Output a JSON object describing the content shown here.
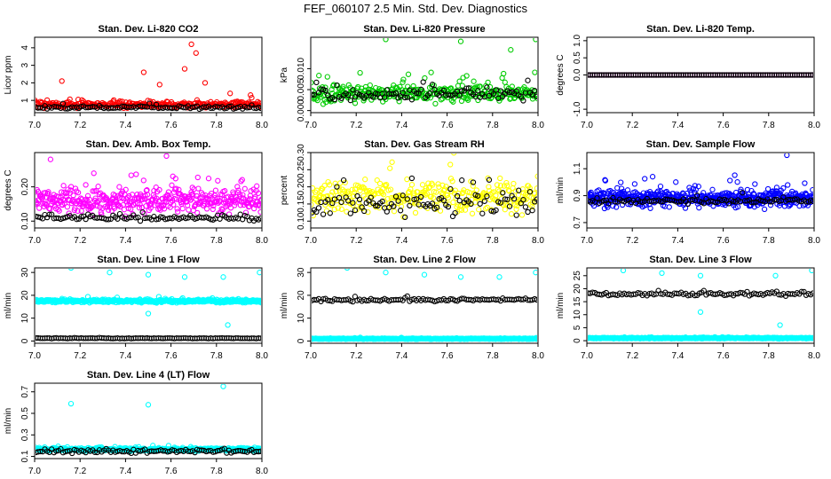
{
  "figure_title": "FEF_060107  2.5 Min. Std. Dev. Diagnostics",
  "colors": {
    "red": "#ff0000",
    "black": "#000000",
    "green": "#00cc00",
    "magenta": "#ff00ff",
    "yellow": "#ffff00",
    "blue": "#0000ff",
    "cyan": "#00ffff"
  },
  "chart_data": [
    {
      "type": "scatter",
      "title": "Stan. Dev. Li-820 CO2",
      "xlabel": "",
      "ylabel": "Licor ppm",
      "xlim": [
        7.0,
        8.0
      ],
      "ylim": [
        0.3,
        4.6
      ],
      "xticks": [
        "7.0",
        "7.2",
        "7.4",
        "7.6",
        "7.8",
        "8.0"
      ],
      "yticks": [
        1,
        2,
        3,
        4
      ],
      "ytick_labels": [
        "1",
        "2",
        "3",
        "4"
      ],
      "series": [
        {
          "name": "primary",
          "color": "#ff0000",
          "n": 300,
          "base": 0.75,
          "spread": 0.25,
          "spikes": [
            [
              7.12,
              2.1
            ],
            [
              7.48,
              2.6
            ],
            [
              7.55,
              1.9
            ],
            [
              7.66,
              2.8
            ],
            [
              7.69,
              4.2
            ],
            [
              7.71,
              3.7
            ],
            [
              7.75,
              2.0
            ],
            [
              7.86,
              1.4
            ],
            [
              7.95,
              1.3
            ]
          ]
        },
        {
          "name": "secondary",
          "color": "#000000",
          "n": 100,
          "base": 0.6,
          "spread": 0.12,
          "spikes": []
        }
      ]
    },
    {
      "type": "scatter",
      "title": "Stan. Dev. Li-820 Pressure",
      "xlabel": "",
      "ylabel": "kPa",
      "xlim": [
        7.0,
        8.0
      ],
      "ylim": [
        -0.0005,
        0.0175
      ],
      "xticks": [
        "7.0",
        "7.2",
        "7.4",
        "7.6",
        "7.8",
        "8.0"
      ],
      "yticks": [
        0.0,
        0.005,
        0.01
      ],
      "ytick_labels": [
        "0.000",
        "0.005",
        "0.010"
      ],
      "series": [
        {
          "name": "primary",
          "color": "#00cc00",
          "n": 320,
          "base": 0.004,
          "spread": 0.003,
          "spikes": [
            [
              7.33,
              0.017
            ],
            [
              7.66,
              0.0165
            ],
            [
              7.88,
              0.0145
            ],
            [
              7.99,
              0.017
            ]
          ]
        },
        {
          "name": "secondary",
          "color": "#000000",
          "n": 100,
          "base": 0.004,
          "spread": 0.002,
          "spikes": []
        }
      ]
    },
    {
      "type": "scatter",
      "title": "Stan. Dev. Li-820 Temp.",
      "xlabel": "",
      "ylabel": "degrees C",
      "xlim": [
        7.0,
        8.0
      ],
      "ylim": [
        -1.1,
        1.1
      ],
      "xticks": [
        "7.0",
        "7.2",
        "7.4",
        "7.6",
        "7.8",
        "8.0"
      ],
      "yticks": [
        -1.0,
        0.0,
        0.5,
        1.0
      ],
      "ytick_labels": [
        "-1.0",
        "0.0",
        "0.5",
        "1.0"
      ],
      "series": [
        {
          "name": "primary",
          "color": "#ff00ff",
          "n": 100,
          "base": 0.0,
          "spread": 0.0,
          "spikes": []
        },
        {
          "name": "secondary",
          "color": "#000000",
          "n": 100,
          "base": 0.0,
          "spread": 0.0,
          "spikes": []
        }
      ]
    },
    {
      "type": "scatter",
      "title": "Stan. Dev. Amb. Box Temp.",
      "xlabel": "",
      "ylabel": "degrees C",
      "xlim": [
        7.0,
        8.0
      ],
      "ylim": [
        0.08,
        0.3
      ],
      "xticks": [
        "7.0",
        "7.2",
        "7.4",
        "7.6",
        "7.8",
        "8.0"
      ],
      "yticks": [
        0.1,
        0.2
      ],
      "ytick_labels": [
        "0.10",
        "0.20"
      ],
      "series": [
        {
          "name": "primary",
          "color": "#ff00ff",
          "n": 420,
          "base": 0.16,
          "spread": 0.05,
          "spikes": [
            [
              7.58,
              0.29
            ],
            [
              7.07,
              0.28
            ]
          ]
        },
        {
          "name": "secondary",
          "color": "#000000",
          "n": 100,
          "base": 0.11,
          "spread": 0.012,
          "spikes": []
        }
      ]
    },
    {
      "type": "scatter",
      "title": "Stan. Dev. Gas Stream RH",
      "xlabel": "",
      "ylabel": "percent",
      "xlim": [
        7.0,
        8.0
      ],
      "ylim": [
        0.08,
        0.3
      ],
      "xticks": [
        "7.0",
        "7.2",
        "7.4",
        "7.6",
        "7.8",
        "8.0"
      ],
      "yticks": [
        0.1,
        0.15,
        0.2,
        0.25,
        0.3
      ],
      "ytick_labels": [
        "0.10",
        "0.15",
        "0.20",
        "0.25",
        "0.30"
      ],
      "series": [
        {
          "name": "primary",
          "color": "#ffff00",
          "n": 320,
          "base": 0.17,
          "spread": 0.07,
          "spikes": []
        },
        {
          "name": "secondary",
          "color": "#000000",
          "n": 100,
          "base": 0.15,
          "spread": 0.05,
          "spikes": []
        }
      ]
    },
    {
      "type": "scatter",
      "title": "Stan. Dev. Sample Flow",
      "xlabel": "",
      "ylabel": "ml/min",
      "xlim": [
        7.0,
        8.0
      ],
      "ylim": [
        0.66,
        1.22
      ],
      "xticks": [
        "7.0",
        "7.2",
        "7.4",
        "7.6",
        "7.8",
        "8.0"
      ],
      "yticks": [
        0.7,
        0.9,
        1.1
      ],
      "ytick_labels": [
        "0.7",
        "0.9",
        "1.1"
      ],
      "series": [
        {
          "name": "primary",
          "color": "#0000ff",
          "n": 520,
          "base": 0.88,
          "spread": 0.09,
          "spikes": [
            [
              7.88,
              1.2
            ]
          ]
        },
        {
          "name": "secondary",
          "color": "#000000",
          "n": 100,
          "base": 0.86,
          "spread": 0.03,
          "spikes": []
        }
      ]
    },
    {
      "type": "scatter",
      "title": "Stan. Dev. Line 1 Flow",
      "xlabel": "",
      "ylabel": "ml/min",
      "xlim": [
        7.0,
        8.0
      ],
      "ylim": [
        -1,
        32
      ],
      "xticks": [
        "7.0",
        "7.2",
        "7.4",
        "7.6",
        "7.8",
        "8.0"
      ],
      "yticks": [
        0,
        10,
        20,
        30
      ],
      "ytick_labels": [
        "0",
        "10",
        "20",
        "30"
      ],
      "series": [
        {
          "name": "primary",
          "color": "#00ffff",
          "n": 420,
          "base": 17.5,
          "spread": 1.0,
          "spikes": [
            [
              7.16,
              32
            ],
            [
              7.33,
              30
            ],
            [
              7.5,
              29
            ],
            [
              7.66,
              28
            ],
            [
              7.83,
              28
            ],
            [
              7.99,
              30
            ],
            [
              7.5,
              12
            ],
            [
              7.85,
              7
            ]
          ]
        },
        {
          "name": "secondary",
          "color": "#000000",
          "n": 100,
          "base": 1.2,
          "spread": 0.2,
          "spikes": []
        }
      ]
    },
    {
      "type": "scatter",
      "title": "Stan. Dev. Line 2 Flow",
      "xlabel": "",
      "ylabel": "ml/min",
      "xlim": [
        7.0,
        8.0
      ],
      "ylim": [
        -1,
        32
      ],
      "xticks": [
        "7.0",
        "7.2",
        "7.4",
        "7.6",
        "7.8",
        "8.0"
      ],
      "yticks": [
        0,
        10,
        20,
        30
      ],
      "ytick_labels": [
        "0",
        "10",
        "20",
        "30"
      ],
      "series": [
        {
          "name": "primary",
          "color": "#00ffff",
          "n": 420,
          "base": 1.0,
          "spread": 0.3,
          "spikes": [
            [
              7.16,
              32
            ],
            [
              7.33,
              30
            ],
            [
              7.5,
              29
            ],
            [
              7.66,
              28
            ],
            [
              7.83,
              28
            ],
            [
              7.99,
              30
            ]
          ]
        },
        {
          "name": "secondary",
          "color": "#000000",
          "n": 100,
          "base": 18.0,
          "spread": 1.0,
          "spikes": []
        }
      ]
    },
    {
      "type": "scatter",
      "title": "Stan. Dev. Line 3 Flow",
      "xlabel": "",
      "ylabel": "ml/min",
      "xlim": [
        7.0,
        8.0
      ],
      "ylim": [
        -1,
        28
      ],
      "xticks": [
        "7.0",
        "7.2",
        "7.4",
        "7.6",
        "7.8",
        "8.0"
      ],
      "yticks": [
        0,
        5,
        10,
        15,
        20,
        25
      ],
      "ytick_labels": [
        "0",
        "5",
        "10",
        "15",
        "20",
        "25"
      ],
      "series": [
        {
          "name": "primary",
          "color": "#00ffff",
          "n": 420,
          "base": 1.0,
          "spread": 0.3,
          "spikes": [
            [
              7.16,
              27
            ],
            [
              7.33,
              26
            ],
            [
              7.5,
              25
            ],
            [
              7.83,
              25
            ],
            [
              7.99,
              27
            ],
            [
              7.5,
              11
            ],
            [
              7.85,
              6
            ]
          ]
        },
        {
          "name": "secondary",
          "color": "#000000",
          "n": 100,
          "base": 18.0,
          "spread": 1.0,
          "spikes": []
        }
      ]
    },
    {
      "type": "scatter",
      "title": "Stan. Dev. Line 4 (LT) Flow",
      "xlabel": "",
      "ylabel": "ml/min",
      "xlim": [
        7.0,
        8.0
      ],
      "ylim": [
        0.08,
        0.78
      ],
      "xticks": [
        "7.0",
        "7.2",
        "7.4",
        "7.6",
        "7.8",
        "8.0"
      ],
      "yticks": [
        0.1,
        0.3,
        0.5,
        0.7
      ],
      "ytick_labels": [
        "0.1",
        "0.3",
        "0.5",
        "0.7"
      ],
      "series": [
        {
          "name": "primary",
          "color": "#00ffff",
          "n": 420,
          "base": 0.165,
          "spread": 0.02,
          "spikes": [
            [
              7.16,
              0.59
            ],
            [
              7.5,
              0.58
            ],
            [
              7.83,
              0.75
            ]
          ]
        },
        {
          "name": "secondary",
          "color": "#000000",
          "n": 100,
          "base": 0.15,
          "spread": 0.025,
          "spikes": []
        }
      ]
    }
  ]
}
